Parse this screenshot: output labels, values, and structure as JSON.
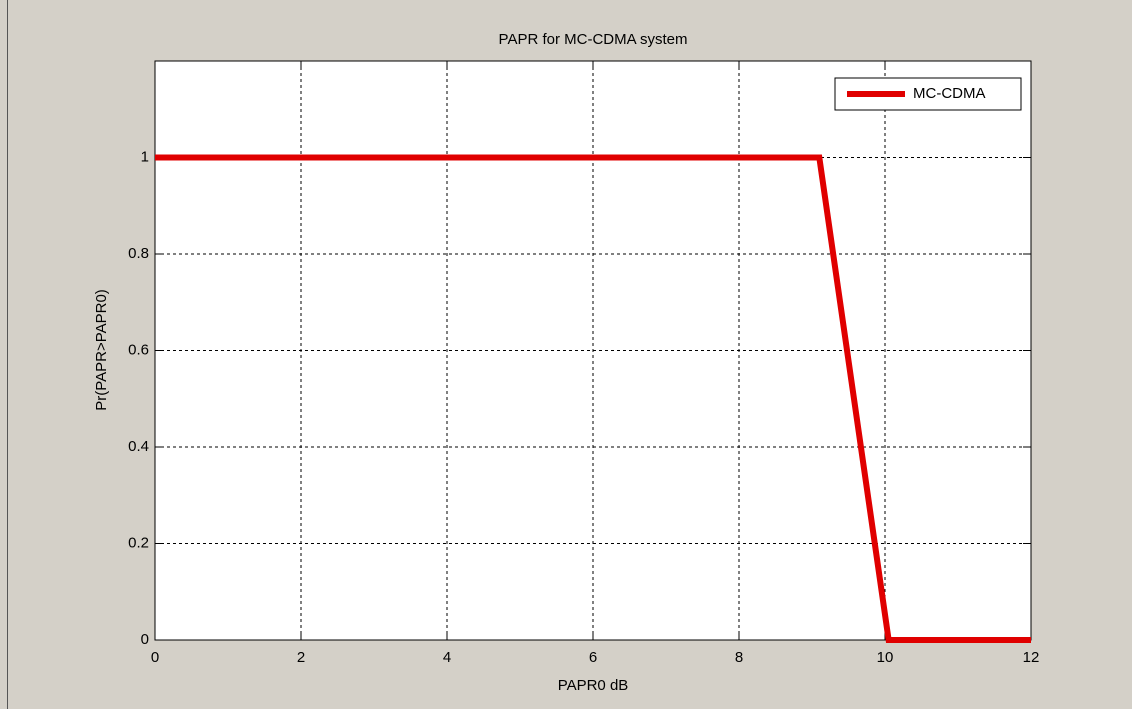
{
  "chart_data": {
    "type": "line",
    "title": "PAPR for MC-CDMA system",
    "xlabel": "PAPR0 dB",
    "ylabel": "Pr(PAPR>PAPR0)",
    "x": [
      0,
      9.1,
      10.05,
      12
    ],
    "series": [
      {
        "name": "MC-CDMA",
        "color": "#e00000",
        "values": [
          1,
          1,
          0,
          0
        ]
      }
    ],
    "xlim": [
      0,
      12
    ],
    "xticks": [
      0,
      2,
      4,
      6,
      8,
      10,
      12
    ],
    "ylim": [
      0,
      1.2
    ],
    "yticks": [
      0,
      0.2,
      0.4,
      0.6,
      0.8,
      1
    ],
    "grid": true,
    "legend": "upper right"
  }
}
